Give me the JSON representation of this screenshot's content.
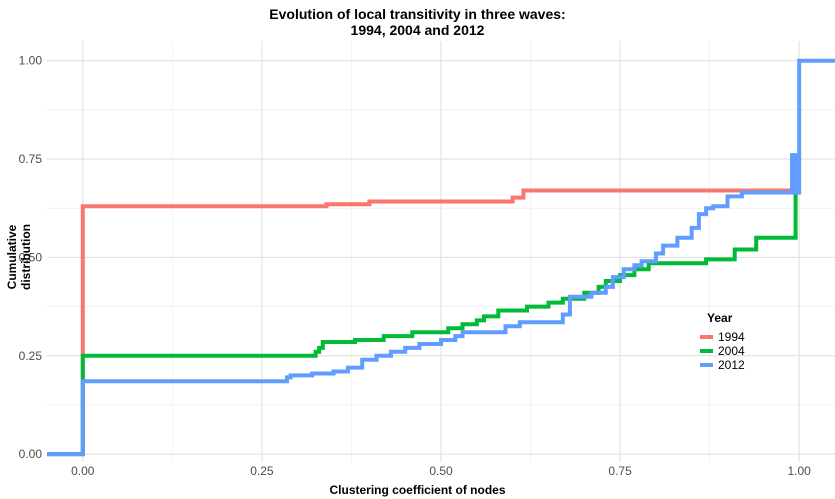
{
  "chart_data": {
    "type": "line",
    "step": true,
    "title": "Evolution of local transitivity in three waves:",
    "subtitle": "1994, 2004 and 2012",
    "xlabel": "Clustering coefficient of nodes",
    "ylabel": "Cumulative distribution",
    "xlim": [
      -0.05,
      1.05
    ],
    "ylim": [
      -0.02,
      1.05
    ],
    "xticks": [
      0,
      0.25,
      0.5,
      0.75,
      1
    ],
    "xtick_labels": [
      "0.00",
      "0.25",
      "0.50",
      "0.75",
      "1.00"
    ],
    "yticks": [
      0,
      0.25,
      0.5,
      0.75,
      1
    ],
    "ytick_labels": [
      "0.00",
      "0.25",
      "0.50",
      "0.75",
      "1.00"
    ],
    "grid": true,
    "legend": {
      "title": "Year",
      "position": "right"
    },
    "series": [
      {
        "name": "1994",
        "color": "#F8766D",
        "points": [
          [
            -0.05,
            0
          ],
          [
            0,
            0
          ],
          [
            0,
            0.63
          ],
          [
            0.34,
            0.63
          ],
          [
            0.34,
            0.635
          ],
          [
            0.4,
            0.635
          ],
          [
            0.4,
            0.642
          ],
          [
            0.6,
            0.642
          ],
          [
            0.6,
            0.652
          ],
          [
            0.615,
            0.652
          ],
          [
            0.615,
            0.67
          ],
          [
            1.0,
            0.67
          ]
        ]
      },
      {
        "name": "2004",
        "color": "#00BA38",
        "points": [
          [
            -0.05,
            0
          ],
          [
            0,
            0
          ],
          [
            0,
            0.25
          ],
          [
            0.325,
            0.25
          ],
          [
            0.325,
            0.26
          ],
          [
            0.33,
            0.26
          ],
          [
            0.33,
            0.27
          ],
          [
            0.335,
            0.27
          ],
          [
            0.335,
            0.285
          ],
          [
            0.38,
            0.285
          ],
          [
            0.38,
            0.29
          ],
          [
            0.42,
            0.29
          ],
          [
            0.42,
            0.3
          ],
          [
            0.46,
            0.3
          ],
          [
            0.46,
            0.31
          ],
          [
            0.51,
            0.31
          ],
          [
            0.51,
            0.32
          ],
          [
            0.53,
            0.32
          ],
          [
            0.53,
            0.33
          ],
          [
            0.55,
            0.33
          ],
          [
            0.55,
            0.34
          ],
          [
            0.56,
            0.34
          ],
          [
            0.56,
            0.35
          ],
          [
            0.58,
            0.35
          ],
          [
            0.58,
            0.365
          ],
          [
            0.62,
            0.365
          ],
          [
            0.62,
            0.375
          ],
          [
            0.65,
            0.375
          ],
          [
            0.65,
            0.385
          ],
          [
            0.67,
            0.385
          ],
          [
            0.67,
            0.395
          ],
          [
            0.7,
            0.395
          ],
          [
            0.7,
            0.41
          ],
          [
            0.72,
            0.41
          ],
          [
            0.72,
            0.425
          ],
          [
            0.73,
            0.425
          ],
          [
            0.73,
            0.44
          ],
          [
            0.75,
            0.44
          ],
          [
            0.75,
            0.455
          ],
          [
            0.77,
            0.455
          ],
          [
            0.77,
            0.47
          ],
          [
            0.79,
            0.47
          ],
          [
            0.79,
            0.485
          ],
          [
            0.87,
            0.485
          ],
          [
            0.87,
            0.495
          ],
          [
            0.91,
            0.495
          ],
          [
            0.91,
            0.52
          ],
          [
            0.94,
            0.52
          ],
          [
            0.94,
            0.55
          ],
          [
            0.995,
            0.55
          ],
          [
            0.995,
            0.75
          ],
          [
            1.0,
            0.75
          ]
        ]
      },
      {
        "name": "2012",
        "color": "#619CFF",
        "points": [
          [
            -0.05,
            0
          ],
          [
            0,
            0
          ],
          [
            0,
            0.185
          ],
          [
            0.285,
            0.185
          ],
          [
            0.285,
            0.195
          ],
          [
            0.29,
            0.195
          ],
          [
            0.29,
            0.2
          ],
          [
            0.32,
            0.2
          ],
          [
            0.32,
            0.205
          ],
          [
            0.35,
            0.205
          ],
          [
            0.35,
            0.21
          ],
          [
            0.37,
            0.21
          ],
          [
            0.37,
            0.22
          ],
          [
            0.39,
            0.22
          ],
          [
            0.39,
            0.24
          ],
          [
            0.41,
            0.24
          ],
          [
            0.41,
            0.25
          ],
          [
            0.43,
            0.25
          ],
          [
            0.43,
            0.26
          ],
          [
            0.45,
            0.26
          ],
          [
            0.45,
            0.27
          ],
          [
            0.47,
            0.27
          ],
          [
            0.47,
            0.28
          ],
          [
            0.5,
            0.28
          ],
          [
            0.5,
            0.29
          ],
          [
            0.52,
            0.29
          ],
          [
            0.52,
            0.3
          ],
          [
            0.53,
            0.3
          ],
          [
            0.53,
            0.31
          ],
          [
            0.59,
            0.31
          ],
          [
            0.59,
            0.325
          ],
          [
            0.61,
            0.325
          ],
          [
            0.61,
            0.335
          ],
          [
            0.67,
            0.335
          ],
          [
            0.67,
            0.355
          ],
          [
            0.68,
            0.355
          ],
          [
            0.68,
            0.38
          ],
          [
            0.68,
            0.38
          ],
          [
            0.68,
            0.4
          ],
          [
            0.71,
            0.4
          ],
          [
            0.71,
            0.41
          ],
          [
            0.73,
            0.41
          ],
          [
            0.73,
            0.425
          ],
          [
            0.74,
            0.425
          ],
          [
            0.74,
            0.45
          ],
          [
            0.755,
            0.45
          ],
          [
            0.755,
            0.47
          ],
          [
            0.77,
            0.47
          ],
          [
            0.77,
            0.48
          ],
          [
            0.78,
            0.48
          ],
          [
            0.78,
            0.49
          ],
          [
            0.8,
            0.49
          ],
          [
            0.8,
            0.51
          ],
          [
            0.81,
            0.51
          ],
          [
            0.81,
            0.53
          ],
          [
            0.83,
            0.53
          ],
          [
            0.83,
            0.55
          ],
          [
            0.85,
            0.55
          ],
          [
            0.85,
            0.575
          ],
          [
            0.86,
            0.575
          ],
          [
            0.86,
            0.61
          ],
          [
            0.87,
            0.61
          ],
          [
            0.87,
            0.625
          ],
          [
            0.88,
            0.625
          ],
          [
            0.88,
            0.63
          ],
          [
            0.9,
            0.63
          ],
          [
            0.9,
            0.655
          ],
          [
            0.92,
            0.655
          ],
          [
            0.92,
            0.665
          ],
          [
            0.99,
            0.665
          ],
          [
            0.99,
            0.76
          ],
          [
            0.995,
            0.76
          ],
          [
            0.995,
            0.665
          ],
          [
            1.0,
            0.665
          ],
          [
            1.0,
            1.0
          ],
          [
            1.05,
            1.0
          ]
        ]
      }
    ]
  }
}
